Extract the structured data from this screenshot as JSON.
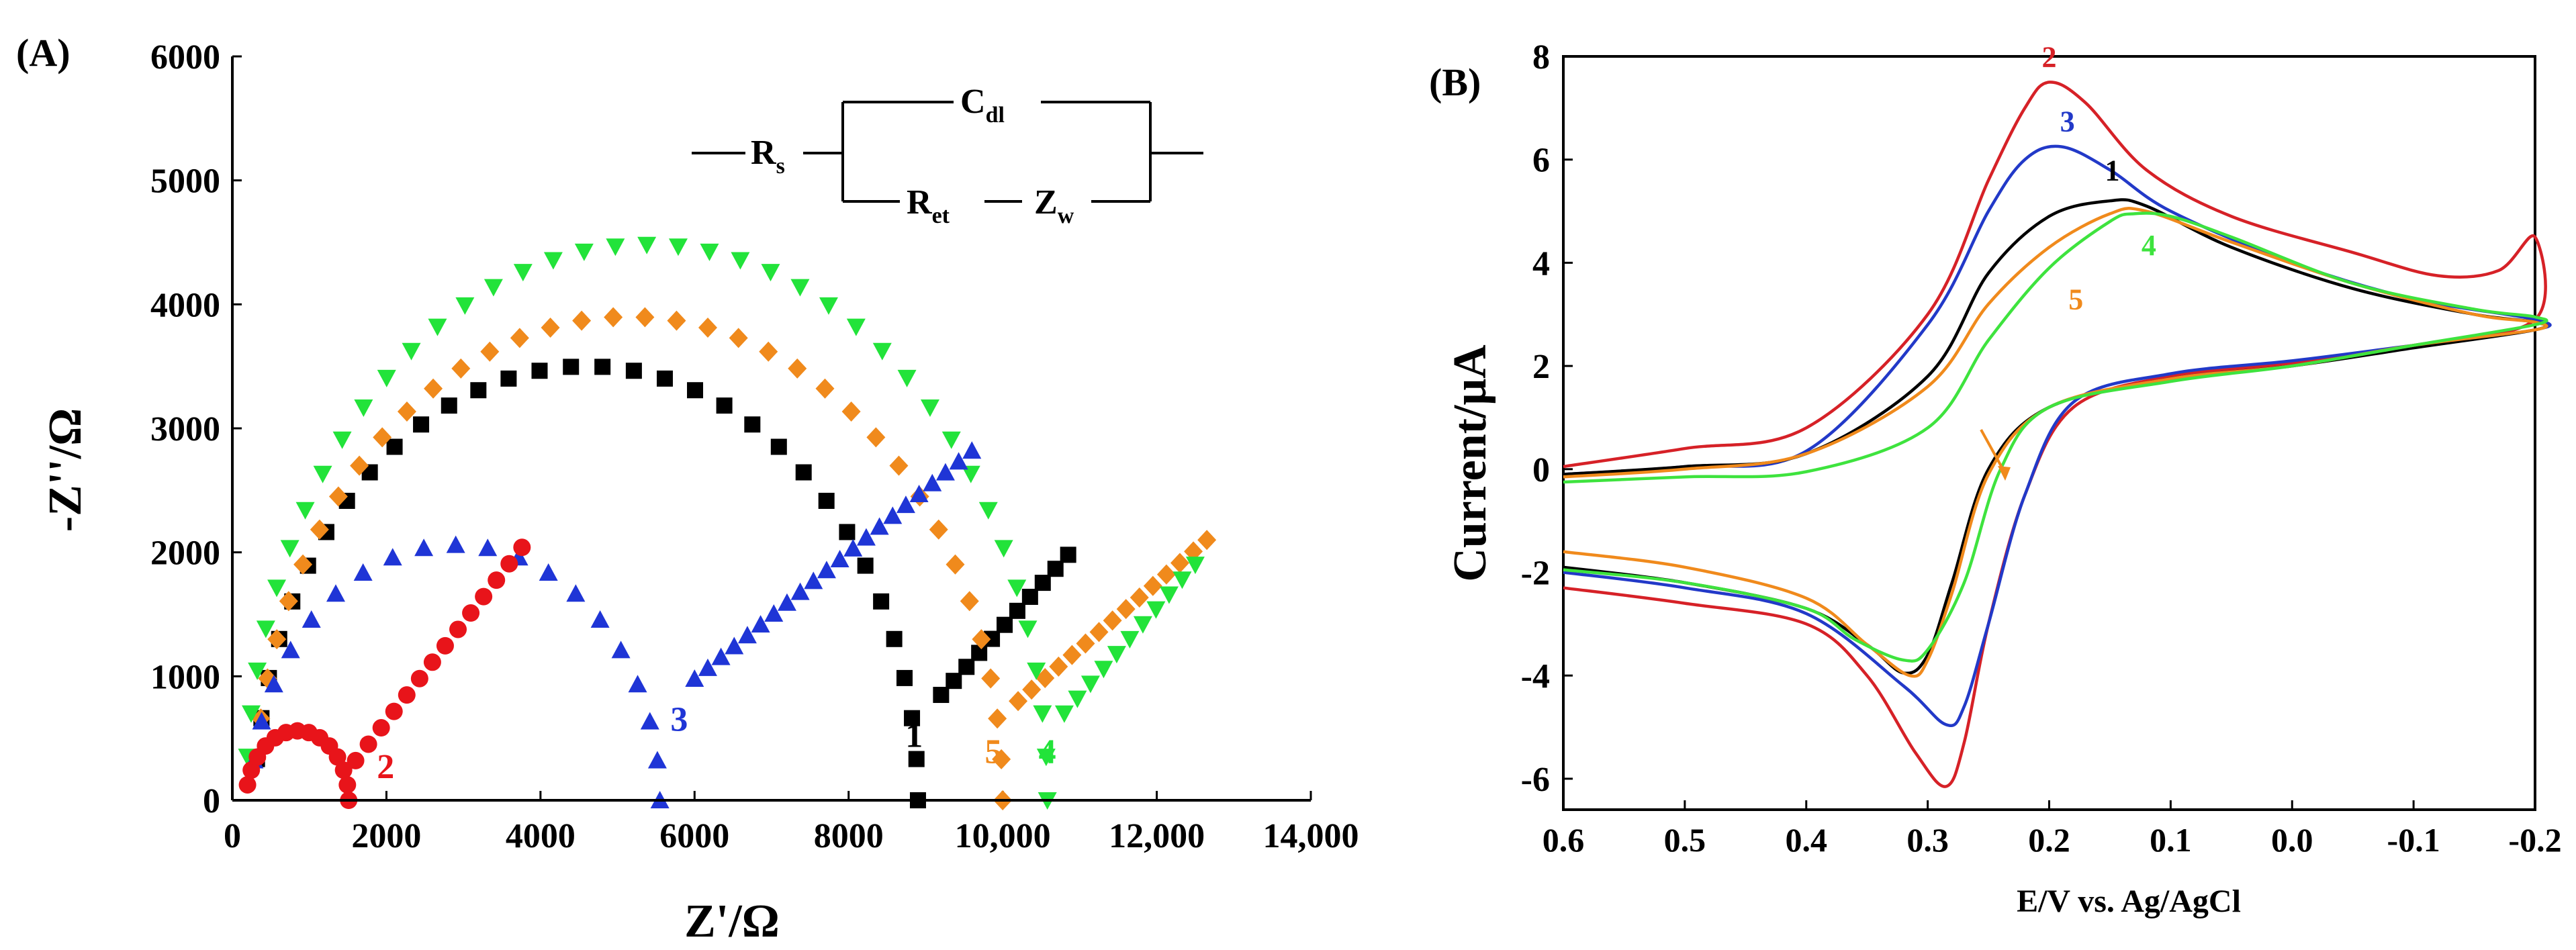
{
  "chart_data": [
    {
      "type": "scatter",
      "panel_label": "(A)",
      "xlabel": "Z'/Ω",
      "ylabel": "-Z''/Ω",
      "xlim": [
        0,
        14000
      ],
      "ylim": [
        0,
        6000
      ],
      "x_ticks": [
        0,
        2000,
        4000,
        6000,
        8000,
        10000,
        12000,
        14000
      ],
      "x_tick_labels": [
        "0",
        "2000",
        "4000",
        "6000",
        "8000",
        "10,000",
        "12,000",
        "14,000"
      ],
      "y_ticks": [
        0,
        1000,
        2000,
        3000,
        4000,
        5000,
        6000
      ],
      "y_tick_labels": [
        "0",
        "1000",
        "2000",
        "3000",
        "4000",
        "5000",
        "6000"
      ],
      "circuit": {
        "rs": "R",
        "rs_sub": "s",
        "cdl": "C",
        "cdl_sub": "dl",
        "ret": "R",
        "ret_sub": "et",
        "zw": "Z",
        "zw_sub": "w"
      },
      "series": [
        {
          "name": "1",
          "color": "#000000",
          "marker": "square",
          "label_at": [
            8850,
            430
          ],
          "arc": {
            "start": 300,
            "diameter": 8600,
            "peak": 3500
          },
          "tail": [
            [
              9200,
              850
            ],
            [
              10850,
              1980
            ]
          ]
        },
        {
          "name": "2",
          "color": "#e8141a",
          "marker": "circle",
          "label_at": [
            1990,
            180
          ],
          "arc": {
            "start": 180,
            "diameter": 1330,
            "peak": 560
          },
          "tail": [
            [
              1600,
              320
            ],
            [
              3760,
              2040
            ]
          ]
        },
        {
          "name": "3",
          "color": "#1f35d6",
          "marker": "triangle-up",
          "label_at": [
            5800,
            560
          ],
          "arc": {
            "start": 250,
            "diameter": 5300,
            "peak": 2060
          },
          "tail": [
            [
              6000,
              980
            ],
            [
              9600,
              2820
            ]
          ]
        },
        {
          "name": "4",
          "color": "#22e33a",
          "marker": "triangle-down",
          "label_at": [
            10580,
            300
          ],
          "arc": {
            "start": 180,
            "diameter": 10400,
            "peak": 4480
          },
          "tail": [
            [
              10800,
              700
            ],
            [
              12500,
              1900
            ]
          ]
        },
        {
          "name": "5",
          "color": "#f08a1c",
          "marker": "diamond",
          "label_at": [
            9880,
            300
          ],
          "arc": {
            "start": 300,
            "diameter": 9700,
            "peak": 3900
          },
          "tail": [
            [
              10200,
              800
            ],
            [
              12650,
              2100
            ]
          ]
        }
      ]
    },
    {
      "type": "line",
      "panel_label": "(B)",
      "xlabel": "E/V vs. Ag/AgCl",
      "ylabel": "Current/μA",
      "xlim": [
        0.6,
        -0.2
      ],
      "ylim": [
        -6.6,
        8
      ],
      "x_ticks": [
        0.6,
        0.5,
        0.4,
        0.3,
        0.2,
        0.1,
        0.0,
        -0.1,
        -0.2
      ],
      "x_tick_labels": [
        "0.6",
        "0.5",
        "0.4",
        "0.3",
        "0.2",
        "0.1",
        "0.0",
        "-0.1",
        "-0.2"
      ],
      "y_ticks": [
        -6,
        -4,
        -2,
        0,
        2,
        4,
        6,
        8
      ],
      "y_tick_labels": [
        "-6",
        "-4",
        "-2",
        "0",
        "2",
        "4",
        "6",
        "8"
      ],
      "series": [
        {
          "name": "1",
          "color": "#000000",
          "label_at": [
            0.148,
            5.6
          ],
          "anodic": [
            [
              0.6,
              -0.1
            ],
            [
              0.5,
              0.05
            ],
            [
              0.4,
              0.3
            ],
            [
              0.3,
              1.8
            ],
            [
              0.25,
              3.8
            ],
            [
              0.2,
              4.9
            ],
            [
              0.15,
              5.2
            ],
            [
              0.12,
              5.1
            ],
            [
              0.05,
              4.3
            ],
            [
              -0.05,
              3.5
            ],
            [
              -0.15,
              3.0
            ],
            [
              -0.2,
              2.85
            ]
          ],
          "cathodic": [
            [
              -0.2,
              2.7
            ],
            [
              -0.1,
              2.35
            ],
            [
              0.0,
              2.0
            ],
            [
              0.1,
              1.75
            ],
            [
              0.2,
              1.2
            ],
            [
              0.25,
              0.0
            ],
            [
              0.28,
              -2.2
            ],
            [
              0.3,
              -3.6
            ],
            [
              0.32,
              -3.95
            ],
            [
              0.35,
              -3.4
            ],
            [
              0.4,
              -2.7
            ],
            [
              0.5,
              -2.2
            ],
            [
              0.6,
              -1.9
            ]
          ]
        },
        {
          "name": "2",
          "color": "#d62127",
          "label_at": [
            0.2,
            7.8
          ],
          "anodic": [
            [
              0.6,
              0.05
            ],
            [
              0.5,
              0.4
            ],
            [
              0.4,
              0.8
            ],
            [
              0.3,
              3.0
            ],
            [
              0.25,
              5.6
            ],
            [
              0.22,
              7.0
            ],
            [
              0.2,
              7.5
            ],
            [
              0.17,
              7.1
            ],
            [
              0.12,
              5.8
            ],
            [
              0.05,
              4.9
            ],
            [
              -0.05,
              4.2
            ],
            [
              -0.12,
              3.75
            ],
            [
              -0.17,
              3.85
            ],
            [
              -0.2,
              4.5
            ]
          ],
          "cathodic": [
            [
              -0.2,
              2.9
            ],
            [
              -0.1,
              2.4
            ],
            [
              0.0,
              2.05
            ],
            [
              0.1,
              1.8
            ],
            [
              0.18,
              1.2
            ],
            [
              0.22,
              -0.5
            ],
            [
              0.25,
              -3.0
            ],
            [
              0.27,
              -5.3
            ],
            [
              0.285,
              -6.15
            ],
            [
              0.31,
              -5.5
            ],
            [
              0.35,
              -4.0
            ],
            [
              0.4,
              -3.0
            ],
            [
              0.5,
              -2.6
            ],
            [
              0.6,
              -2.3
            ]
          ]
        },
        {
          "name": "3",
          "color": "#2239c8",
          "label_at": [
            0.185,
            6.55
          ],
          "anodic": [
            [
              0.6,
              -0.1
            ],
            [
              0.5,
              0.05
            ],
            [
              0.4,
              0.35
            ],
            [
              0.3,
              2.8
            ],
            [
              0.25,
              5.0
            ],
            [
              0.22,
              6.0
            ],
            [
              0.19,
              6.25
            ],
            [
              0.15,
              5.8
            ],
            [
              0.1,
              5.0
            ],
            [
              0.0,
              4.0
            ],
            [
              -0.1,
              3.3
            ],
            [
              -0.2,
              2.9
            ]
          ],
          "cathodic": [
            [
              -0.2,
              2.7
            ],
            [
              -0.1,
              2.4
            ],
            [
              0.0,
              2.1
            ],
            [
              0.1,
              1.85
            ],
            [
              0.18,
              1.3
            ],
            [
              0.22,
              -0.5
            ],
            [
              0.25,
              -3.0
            ],
            [
              0.27,
              -4.6
            ],
            [
              0.285,
              -4.95
            ],
            [
              0.32,
              -4.2
            ],
            [
              0.4,
              -2.8
            ],
            [
              0.5,
              -2.3
            ],
            [
              0.6,
              -2.0
            ]
          ]
        },
        {
          "name": "4",
          "color": "#3ee33e",
          "label_at": [
            0.118,
            4.15
          ],
          "anodic": [
            [
              0.6,
              -0.25
            ],
            [
              0.5,
              -0.15
            ],
            [
              0.4,
              -0.05
            ],
            [
              0.3,
              0.8
            ],
            [
              0.25,
              2.5
            ],
            [
              0.2,
              3.9
            ],
            [
              0.15,
              4.8
            ],
            [
              0.13,
              4.95
            ],
            [
              0.1,
              4.9
            ],
            [
              0.05,
              4.5
            ],
            [
              -0.05,
              3.6
            ],
            [
              -0.15,
              3.1
            ],
            [
              -0.2,
              2.95
            ]
          ],
          "cathodic": [
            [
              -0.2,
              2.8
            ],
            [
              -0.1,
              2.4
            ],
            [
              0.0,
              2.0
            ],
            [
              0.1,
              1.7
            ],
            [
              0.2,
              1.2
            ],
            [
              0.24,
              0.0
            ],
            [
              0.27,
              -2.2
            ],
            [
              0.3,
              -3.5
            ],
            [
              0.32,
              -3.7
            ],
            [
              0.36,
              -3.3
            ],
            [
              0.4,
              -2.7
            ],
            [
              0.5,
              -2.2
            ],
            [
              0.6,
              -1.95
            ]
          ]
        },
        {
          "name": "5",
          "color": "#f08a1c",
          "label_at": [
            0.178,
            3.1
          ],
          "anodic": [
            [
              0.6,
              -0.15
            ],
            [
              0.5,
              0.0
            ],
            [
              0.4,
              0.3
            ],
            [
              0.3,
              1.6
            ],
            [
              0.25,
              3.2
            ],
            [
              0.2,
              4.3
            ],
            [
              0.15,
              4.95
            ],
            [
              0.12,
              5.0
            ],
            [
              0.05,
              4.4
            ],
            [
              -0.05,
              3.6
            ],
            [
              -0.15,
              3.0
            ],
            [
              -0.2,
              2.85
            ]
          ],
          "cathodic": [
            [
              -0.2,
              2.7
            ],
            [
              -0.1,
              2.4
            ],
            [
              0.0,
              2.0
            ],
            [
              0.1,
              1.75
            ],
            [
              0.2,
              1.2
            ],
            [
              0.25,
              -0.1
            ],
            [
              0.28,
              -2.4
            ],
            [
              0.3,
              -3.7
            ],
            [
              0.315,
              -4.0
            ],
            [
              0.35,
              -3.4
            ],
            [
              0.4,
              -2.5
            ],
            [
              0.5,
              -1.9
            ],
            [
              0.6,
              -1.6
            ]
          ]
        }
      ]
    }
  ]
}
